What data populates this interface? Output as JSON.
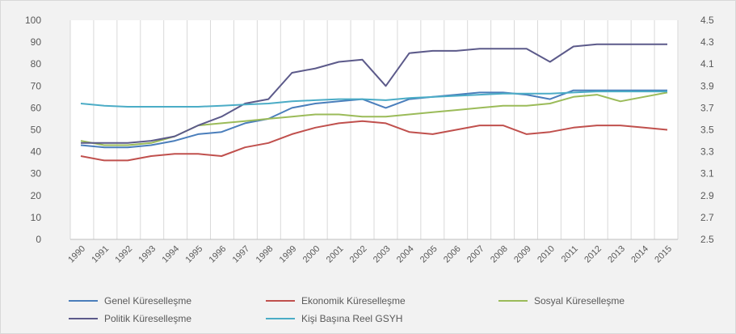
{
  "chart_data": {
    "type": "line",
    "title": "",
    "xlabel": "",
    "ylabel": "",
    "x": [
      "1990",
      "1991",
      "1992",
      "1993",
      "1994",
      "1995",
      "1996",
      "1997",
      "1998",
      "1999",
      "2000",
      "2001",
      "2002",
      "2003",
      "2004",
      "2005",
      "2006",
      "2007",
      "2008",
      "2009",
      "2010",
      "2011",
      "2012",
      "2013",
      "2014",
      "2015"
    ],
    "ylim": [
      0,
      100
    ],
    "y_ticks": [
      "0",
      "10",
      "20",
      "30",
      "40",
      "50",
      "60",
      "70",
      "80",
      "90",
      "100"
    ],
    "y2lim": [
      2.5,
      4.5
    ],
    "y2_ticks": [
      "2.5",
      "2.7",
      "2.9",
      "3.1",
      "3.3",
      "3.5",
      "3.7",
      "3.9",
      "4.1",
      "4.3",
      "4.5"
    ],
    "grid": "vertical",
    "legend_position": "bottom",
    "series": [
      {
        "name": "Genel Küreselleşme",
        "axis": "left",
        "color": "#4a7ebb",
        "values": [
          43,
          42,
          42,
          43,
          45,
          48,
          49,
          53,
          55,
          60,
          62,
          63,
          64,
          60,
          64,
          65,
          66,
          67,
          67,
          66,
          64,
          68,
          68,
          68,
          68,
          68
        ]
      },
      {
        "name": "Ekonomik Küreselleşme",
        "axis": "left",
        "color": "#c0504d",
        "values": [
          38,
          36,
          36,
          38,
          39,
          39,
          38,
          42,
          44,
          48,
          51,
          53,
          54,
          53,
          49,
          48,
          50,
          52,
          52,
          48,
          49,
          51,
          52,
          52,
          51,
          50
        ]
      },
      {
        "name": "Sosyal Küreselleşme",
        "axis": "left",
        "color": "#9bbb59",
        "values": [
          45,
          43,
          43,
          44,
          47,
          52,
          53,
          54,
          55,
          56,
          57,
          57,
          56,
          56,
          57,
          58,
          59,
          60,
          61,
          61,
          62,
          65,
          66,
          63,
          65,
          67
        ]
      },
      {
        "name": "Politik Küreselleşme",
        "axis": "left",
        "color": "#5c5a8a",
        "values": [
          44,
          44,
          44,
          45,
          47,
          52,
          56,
          62,
          64,
          76,
          78,
          81,
          82,
          70,
          85,
          86,
          86,
          87,
          87,
          87,
          81,
          88,
          89,
          89,
          89,
          89
        ]
      },
      {
        "name": "Kişi Başına Reel GSYH",
        "axis": "right",
        "color": "#4bacc6",
        "values": [
          3.74,
          3.72,
          3.71,
          3.71,
          3.71,
          3.71,
          3.72,
          3.73,
          3.74,
          3.76,
          3.77,
          3.78,
          3.78,
          3.77,
          3.79,
          3.8,
          3.81,
          3.82,
          3.83,
          3.83,
          3.83,
          3.84,
          3.85,
          3.85,
          3.85,
          3.85
        ]
      }
    ]
  }
}
